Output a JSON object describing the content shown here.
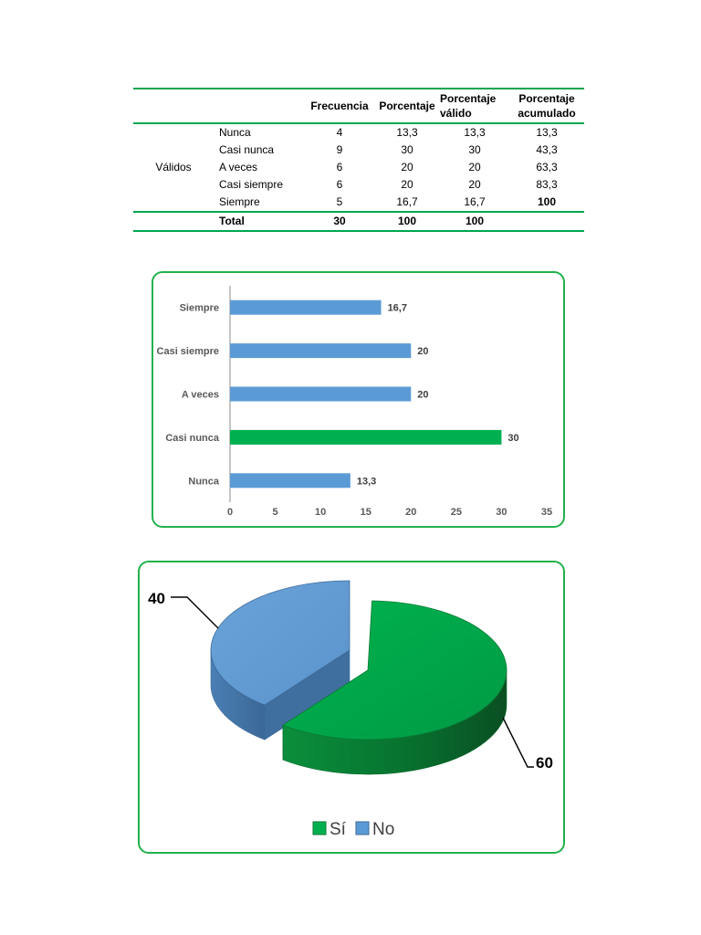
{
  "table": {
    "headers": [
      "",
      "",
      "Frecuencia",
      "Porcentaje",
      "Porcentaje válido",
      "Porcentaje acumulado"
    ],
    "group_label": "Válidos",
    "rows": [
      {
        "cat": "Nunca",
        "freq": "4",
        "pct": "13,3",
        "valid": "13,3",
        "cum": "13,3"
      },
      {
        "cat": "Casi nunca",
        "freq": "9",
        "pct": "30",
        "valid": "30",
        "cum": "43,3"
      },
      {
        "cat": "A veces",
        "freq": "6",
        "pct": "20",
        "valid": "20",
        "cum": "63,3"
      },
      {
        "cat": "Casi siempre",
        "freq": "6",
        "pct": "20",
        "valid": "20",
        "cum": "83,3"
      },
      {
        "cat": "Siempre",
        "freq": "5",
        "pct": "16,7",
        "valid": "16,7",
        "cum": "100"
      }
    ],
    "total": {
      "cat": "Total",
      "freq": "30",
      "pct": "100",
      "valid": "100",
      "cum": ""
    }
  },
  "chart_data": [
    {
      "type": "bar",
      "orientation": "horizontal",
      "categories": [
        "Nunca",
        "Casi nunca",
        "A veces",
        "Casi siempre",
        "Siempre"
      ],
      "values": [
        13.3,
        30,
        20,
        20,
        16.7
      ],
      "value_labels": [
        "13,3",
        "30",
        "20",
        "20",
        "16,7"
      ],
      "xlim": [
        0,
        35
      ],
      "xticks": [
        0,
        5,
        10,
        15,
        20,
        25,
        30,
        35
      ],
      "colors": [
        "#5b9bd5",
        "#00b050",
        "#5b9bd5",
        "#5b9bd5",
        "#5b9bd5"
      ],
      "grid": false,
      "title": "",
      "xlabel": "",
      "ylabel": ""
    },
    {
      "type": "pie",
      "style": "3d-exploded",
      "labels": [
        "Sí",
        "No"
      ],
      "values": [
        60,
        40
      ],
      "value_labels": [
        "60",
        "40"
      ],
      "colors": [
        "#00b050",
        "#5b9bd5"
      ],
      "legend": "bottom"
    }
  ]
}
